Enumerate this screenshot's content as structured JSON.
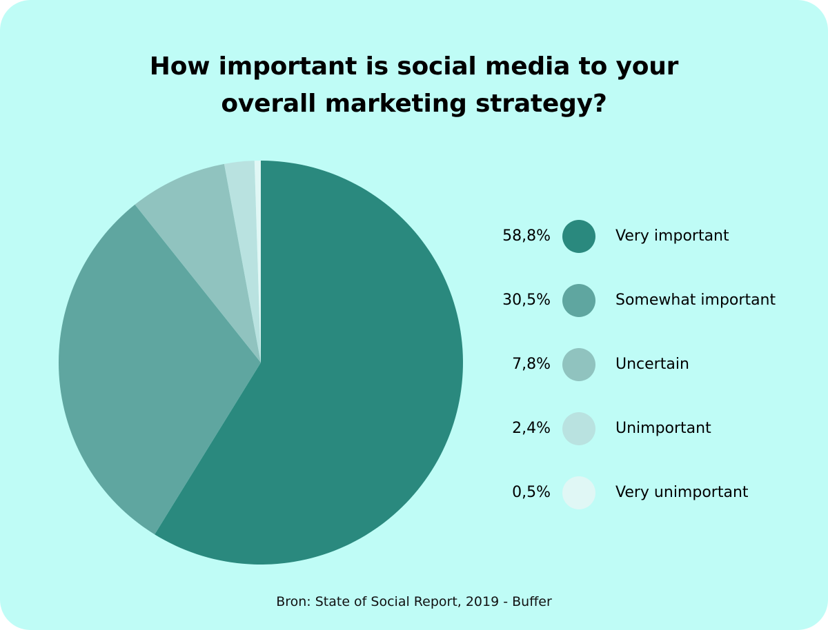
{
  "chart_data": {
    "type": "pie",
    "title_lines": [
      "How important is social media to your",
      "overall marketing strategy?"
    ],
    "categories": [
      "Very important",
      "Somewhat important",
      "Uncertain",
      "Unimportant",
      "Very unimportant"
    ],
    "values": [
      58.8,
      30.5,
      7.8,
      2.4,
      0.5
    ],
    "value_labels": [
      "58,8%",
      "30,5%",
      "7,8%",
      "2,4%",
      "0,5%"
    ],
    "colors": [
      "#2a897e",
      "#5fa6a0",
      "#90c3bf",
      "#b9e2e0",
      "#e0f7f5"
    ],
    "legend_placement": "right",
    "source": "Bron: State of Social Report, 2019 - Buffer"
  }
}
